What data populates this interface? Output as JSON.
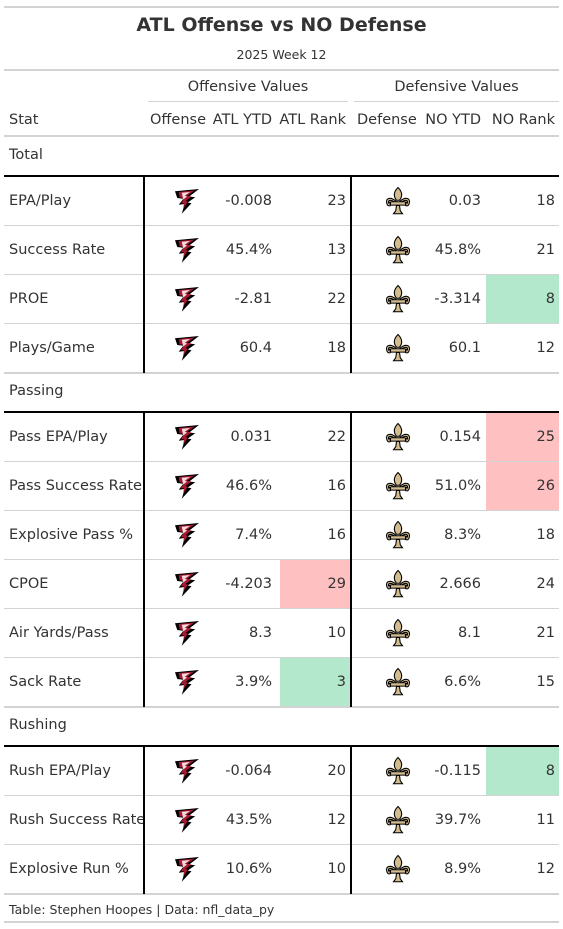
{
  "title": "ATL Offense vs NO Defense",
  "subtitle": "2025 Week 12",
  "spanners": {
    "offense": "Offensive Values",
    "defense": "Defensive Values"
  },
  "columns": [
    "Stat",
    "Offense",
    "ATL YTD",
    "ATL Rank",
    "Defense",
    "NO YTD",
    "NO Rank"
  ],
  "colors": {
    "good": "#b3e8cc",
    "bad": "#ffc0c1",
    "falcons_red": "#a71930",
    "falcons_black": "#000000",
    "saints_gold": "#d3bc8d",
    "rule": "#d3d3d3"
  },
  "icons": {
    "offense": "falcons-logo-icon",
    "defense": "saints-fleur-de-lis-icon"
  },
  "chart_data": {
    "type": "table",
    "title": "ATL Offense vs NO Defense",
    "subtitle": "2025 Week 12",
    "groups": [
      {
        "name": "Total",
        "rows": [
          {
            "stat": "EPA/Play",
            "atl_ytd": "-0.008",
            "atl_rank": 23,
            "no_ytd": "0.03",
            "no_rank": 18,
            "atl_hl": "",
            "no_hl": ""
          },
          {
            "stat": "Success Rate",
            "atl_ytd": "45.4%",
            "atl_rank": 13,
            "no_ytd": "45.8%",
            "no_rank": 21,
            "atl_hl": "",
            "no_hl": ""
          },
          {
            "stat": "PROE",
            "atl_ytd": "-2.81",
            "atl_rank": 22,
            "no_ytd": "-3.314",
            "no_rank": 8,
            "atl_hl": "",
            "no_hl": "good"
          },
          {
            "stat": "Plays/Game",
            "atl_ytd": "60.4",
            "atl_rank": 18,
            "no_ytd": "60.1",
            "no_rank": 12,
            "atl_hl": "",
            "no_hl": ""
          }
        ]
      },
      {
        "name": "Passing",
        "rows": [
          {
            "stat": "Pass EPA/Play",
            "atl_ytd": "0.031",
            "atl_rank": 22,
            "no_ytd": "0.154",
            "no_rank": 25,
            "atl_hl": "",
            "no_hl": "bad"
          },
          {
            "stat": "Pass Success Rate",
            "atl_ytd": "46.6%",
            "atl_rank": 16,
            "no_ytd": "51.0%",
            "no_rank": 26,
            "atl_hl": "",
            "no_hl": "bad"
          },
          {
            "stat": "Explosive Pass %",
            "atl_ytd": "7.4%",
            "atl_rank": 16,
            "no_ytd": "8.3%",
            "no_rank": 18,
            "atl_hl": "",
            "no_hl": ""
          },
          {
            "stat": "CPOE",
            "atl_ytd": "-4.203",
            "atl_rank": 29,
            "no_ytd": "2.666",
            "no_rank": 24,
            "atl_hl": "bad",
            "no_hl": ""
          },
          {
            "stat": "Air Yards/Pass",
            "atl_ytd": "8.3",
            "atl_rank": 10,
            "no_ytd": "8.1",
            "no_rank": 21,
            "atl_hl": "",
            "no_hl": ""
          },
          {
            "stat": "Sack Rate",
            "atl_ytd": "3.9%",
            "atl_rank": 3,
            "no_ytd": "6.6%",
            "no_rank": 15,
            "atl_hl": "good",
            "no_hl": ""
          }
        ]
      },
      {
        "name": "Rushing",
        "rows": [
          {
            "stat": "Rush EPA/Play",
            "atl_ytd": "-0.064",
            "atl_rank": 20,
            "no_ytd": "-0.115",
            "no_rank": 8,
            "atl_hl": "",
            "no_hl": "good"
          },
          {
            "stat": "Rush Success Rate",
            "atl_ytd": "43.5%",
            "atl_rank": 12,
            "no_ytd": "39.7%",
            "no_rank": 11,
            "atl_hl": "",
            "no_hl": ""
          },
          {
            "stat": "Explosive Run %",
            "atl_ytd": "10.6%",
            "atl_rank": 10,
            "no_ytd": "8.9%",
            "no_rank": 12,
            "atl_hl": "",
            "no_hl": ""
          }
        ]
      }
    ]
  },
  "footer": "Table: Stephen Hoopes | Data: nfl_data_py"
}
